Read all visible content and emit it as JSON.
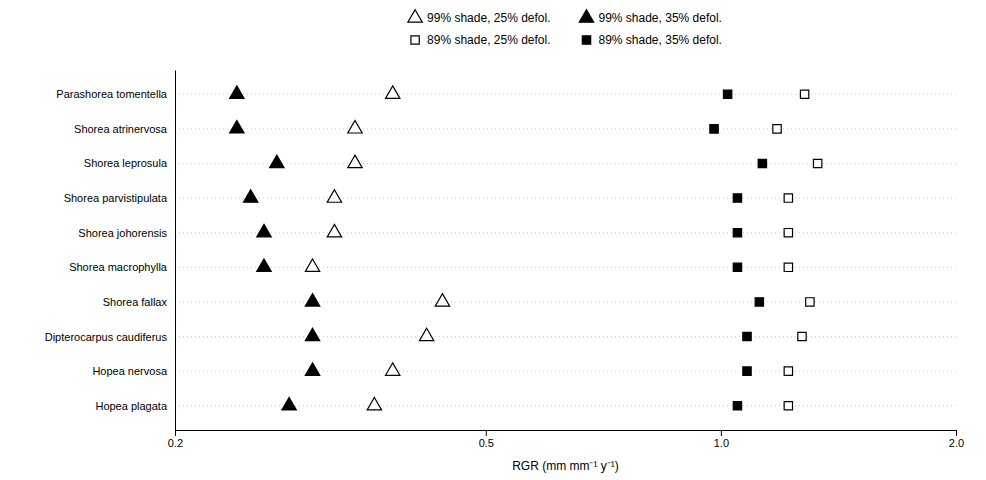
{
  "chart_data": {
    "type": "dot",
    "orientation": "horizontal",
    "xlabel": "RGR (mm  mm⁻¹  y⁻¹)",
    "categories": [
      "Parashorea tomentella",
      "Shorea atrinervosa",
      "Shorea leprosula",
      "Shorea parvistipulata",
      "Shorea johorensis",
      "Shorea macrophylla",
      "Shorea fallax",
      "Dipterocarpus caudiferus",
      "Hopea nervosa",
      "Hopea plagata"
    ],
    "series": [
      {
        "name": "99% shade, 25% defol.",
        "color": "black",
        "marker": "triangle-open",
        "values": [
          0.38,
          0.34,
          0.34,
          0.32,
          0.32,
          0.3,
          0.44,
          0.42,
          0.38,
          0.36
        ]
      },
      {
        "name": "99% shade, 35% defol.",
        "color": "black",
        "marker": "triangle",
        "values": [
          0.24,
          0.24,
          0.27,
          0.25,
          0.26,
          0.26,
          0.3,
          0.3,
          0.3,
          0.28
        ]
      },
      {
        "name": "89% shade, 25% defol.",
        "color": "black",
        "marker": "square-open",
        "values": [
          1.28,
          1.18,
          1.33,
          1.22,
          1.22,
          1.22,
          1.3,
          1.27,
          1.22,
          1.22
        ]
      },
      {
        "name": "89% shade, 35% defol.",
        "color": "black",
        "marker": "square",
        "values": [
          1.02,
          0.98,
          1.13,
          1.05,
          1.05,
          1.05,
          1.12,
          1.08,
          1.08,
          1.05
        ]
      }
    ],
    "log": "x",
    "xlim": [
      0.2,
      2.0
    ],
    "xticks": [
      0.2,
      0.5,
      {
        "value": 1,
        "label": "1.0"
      },
      {
        "value": 2,
        "label": "2.0"
      }
    ],
    "grid": true,
    "legend": "top"
  }
}
